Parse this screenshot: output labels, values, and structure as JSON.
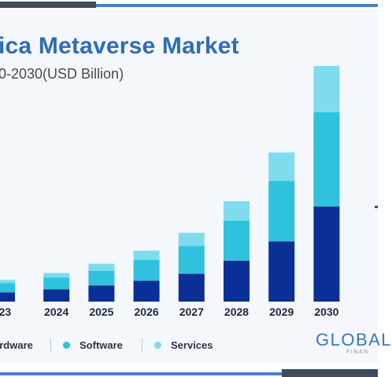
{
  "header": {
    "title": "ica Metaverse Market",
    "subtitle": "0-2030(USD Billion)"
  },
  "legend": {
    "items": [
      {
        "label": "ardware",
        "color": "#0a2f96"
      },
      {
        "label": "Software",
        "color": "#2ec2dd"
      },
      {
        "label": "Services",
        "color": "#7fdcee"
      }
    ]
  },
  "brand": {
    "name": "GLOBAL",
    "sub": "FINAN"
  },
  "colors": {
    "title": "#2f6db5",
    "hardware": "#0a2f96",
    "software": "#2ec2dd",
    "services": "#7fdcee"
  },
  "chart_data": {
    "type": "bar",
    "stacked": true,
    "categories": [
      "023",
      "2024",
      "2025",
      "2026",
      "2027",
      "2028",
      "2029",
      "2030"
    ],
    "series": [
      {
        "name": "ardware",
        "values": [
          12,
          16,
          21,
          27,
          36,
          53,
          78,
          123
        ]
      },
      {
        "name": "Software",
        "values": [
          12,
          15,
          19,
          27,
          36,
          52,
          78,
          122
        ]
      },
      {
        "name": "Services",
        "values": [
          4,
          6,
          9,
          12,
          17,
          25,
          37,
          60
        ]
      }
    ],
    "ylim": [
      0,
      310
    ],
    "grid": false,
    "legend_position": "bottom-left"
  }
}
